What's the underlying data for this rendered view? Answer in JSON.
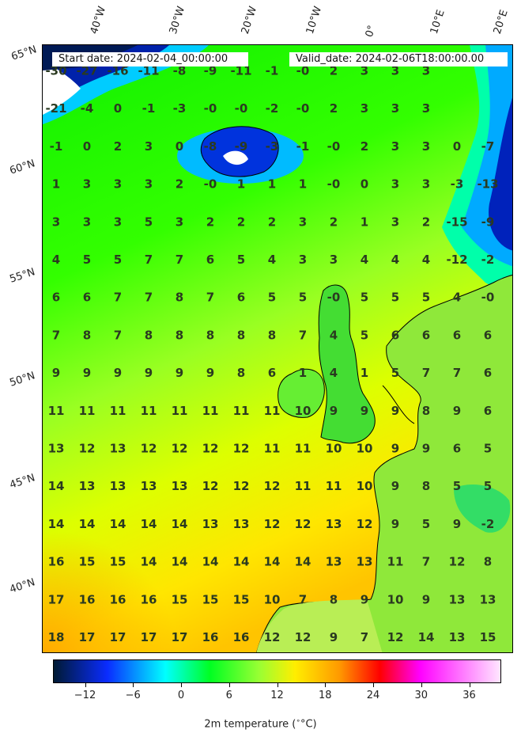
{
  "header": {
    "start_date": "Start date: 2024-02-04_00:00:00",
    "valid_date": "Valid_date: 2024-02-06T18:00:00.00"
  },
  "lon_labels": [
    "40°W",
    "30°W",
    "20°W",
    "10°W",
    "0°",
    "10°E",
    "20°E"
  ],
  "lat_labels": [
    "65°N",
    "60°N",
    "55°N",
    "50°N",
    "45°N",
    "40°N"
  ],
  "grid_values": [
    [
      "-30",
      "-27",
      "-16",
      "-11",
      "-8",
      "-9",
      "-11",
      "-1",
      "-0",
      "2",
      "3",
      "3",
      "3",
      "",
      ""
    ],
    [
      "-21",
      "-4",
      "0",
      "-1",
      "-3",
      "-0",
      "-0",
      "-2",
      "-0",
      "2",
      "3",
      "3",
      "3",
      "",
      ""
    ],
    [
      "-1",
      "0",
      "2",
      "3",
      "0",
      "-8",
      "-9",
      "-3",
      "-1",
      "-0",
      "2",
      "3",
      "3",
      "0",
      "-7"
    ],
    [
      "1",
      "3",
      "3",
      "3",
      "2",
      "-0",
      "1",
      "1",
      "1",
      "-0",
      "0",
      "3",
      "3",
      "-3",
      "-13"
    ],
    [
      "3",
      "3",
      "3",
      "5",
      "3",
      "2",
      "2",
      "2",
      "3",
      "2",
      "1",
      "3",
      "2",
      "-15",
      "-9"
    ],
    [
      "4",
      "5",
      "5",
      "7",
      "7",
      "6",
      "5",
      "4",
      "3",
      "3",
      "4",
      "4",
      "4",
      "-12",
      "-2"
    ],
    [
      "6",
      "6",
      "7",
      "7",
      "8",
      "7",
      "6",
      "5",
      "5",
      "-0",
      "5",
      "5",
      "5",
      "4",
      "-0"
    ],
    [
      "7",
      "8",
      "7",
      "8",
      "8",
      "8",
      "8",
      "8",
      "7",
      "4",
      "5",
      "6",
      "6",
      "6",
      "6"
    ],
    [
      "9",
      "9",
      "9",
      "9",
      "9",
      "9",
      "8",
      "6",
      "1",
      "4",
      "1",
      "5",
      "7",
      "7",
      "6"
    ],
    [
      "11",
      "11",
      "11",
      "11",
      "11",
      "11",
      "11",
      "11",
      "10",
      "9",
      "9",
      "9",
      "8",
      "9",
      "6"
    ],
    [
      "13",
      "12",
      "13",
      "12",
      "12",
      "12",
      "12",
      "11",
      "11",
      "10",
      "10",
      "9",
      "9",
      "6",
      "5"
    ],
    [
      "14",
      "13",
      "13",
      "13",
      "13",
      "12",
      "12",
      "12",
      "11",
      "11",
      "10",
      "9",
      "8",
      "5",
      "5"
    ],
    [
      "14",
      "14",
      "14",
      "14",
      "14",
      "13",
      "13",
      "12",
      "12",
      "13",
      "12",
      "9",
      "5",
      "9",
      "-2"
    ],
    [
      "16",
      "15",
      "15",
      "14",
      "14",
      "14",
      "14",
      "14",
      "14",
      "13",
      "13",
      "11",
      "7",
      "12",
      "8"
    ],
    [
      "17",
      "16",
      "16",
      "16",
      "15",
      "15",
      "15",
      "10",
      "7",
      "8",
      "9",
      "10",
      "9",
      "13",
      "13"
    ],
    [
      "18",
      "17",
      "17",
      "17",
      "17",
      "16",
      "16",
      "12",
      "12",
      "9",
      "7",
      "12",
      "14",
      "13",
      "15"
    ]
  ],
  "colorbar": {
    "ticks": [
      "−12",
      "−6",
      "0",
      "6",
      "12",
      "18",
      "24",
      "30",
      "36"
    ],
    "tick_values": [
      -12,
      -6,
      0,
      6,
      12,
      18,
      24,
      30,
      36
    ],
    "range": [
      -16,
      40
    ],
    "title": "2m temperature (",
    "title_unit": "°C)"
  },
  "colors": {
    "deep_cold": "#001a33",
    "cold_blue": "#0a2cff",
    "cyan": "#00ffff",
    "green": "#00ff22",
    "lime": "#99ff33",
    "yellow": "#ffee00",
    "orange": "#ff9900",
    "red": "#ff0000",
    "magenta": "#ff00ff",
    "pink": "#ffe6ff"
  }
}
